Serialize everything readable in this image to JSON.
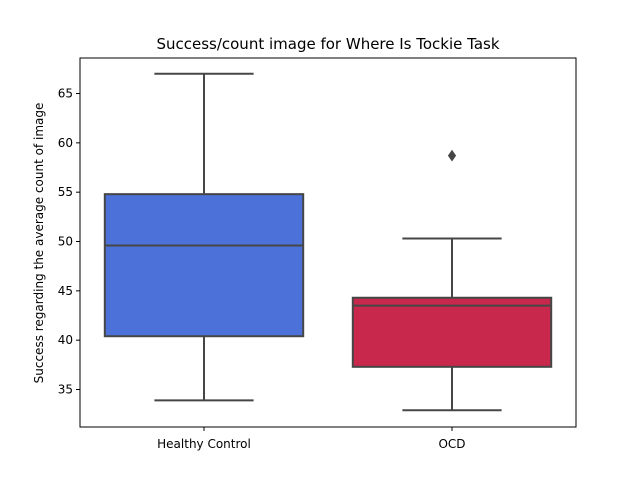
{
  "chart_data": {
    "type": "box",
    "title": "Success/count image for Where Is Tockie Task",
    "xlabel": "",
    "ylabel": "Success regarding the average count of image",
    "categories": [
      "Healthy Control",
      "OCD"
    ],
    "ylim": [
      31.2,
      68.6
    ],
    "yticks": [
      35,
      40,
      45,
      50,
      55,
      60,
      65
    ],
    "grid": false,
    "series": [
      {
        "category": "Healthy Control",
        "whisker_low": 33.9,
        "q1": 40.4,
        "median": 49.6,
        "q3": 54.8,
        "whisker_high": 67.0,
        "outliers": [],
        "color": "#4c72d9"
      },
      {
        "category": "OCD",
        "whisker_low": 32.9,
        "q1": 37.3,
        "median": 43.5,
        "q3": 44.3,
        "whisker_high": 50.3,
        "outliers": [
          58.7
        ],
        "color": "#c8284c"
      }
    ],
    "line_color": "#464646"
  }
}
